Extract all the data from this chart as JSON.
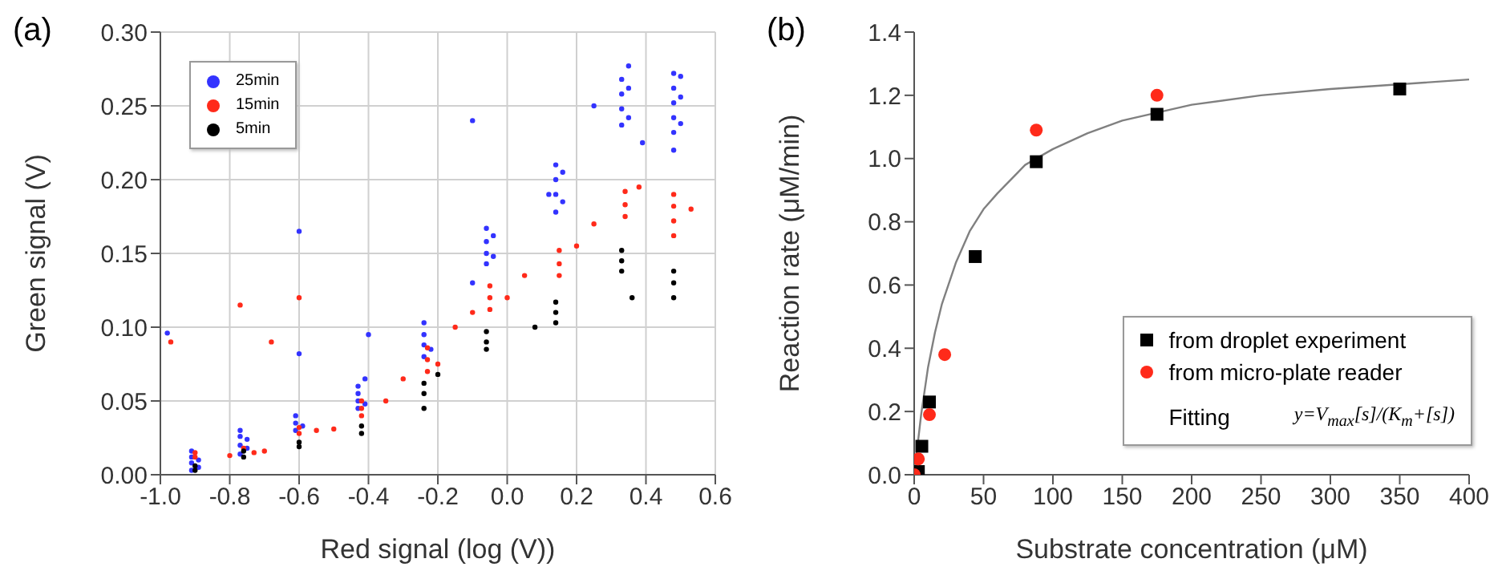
{
  "chart_data": [
    {
      "type": "scatter",
      "title": "(a)",
      "xlabel": "Red signal (log (V))",
      "ylabel": "Green signal (V)",
      "xlim": [
        -1.0,
        0.6
      ],
      "xticks": [
        {
          "value": -1.0,
          "label": "-1.0"
        },
        {
          "value": -0.8,
          "label": "-0.8"
        },
        {
          "value": -0.6,
          "label": "-0.6"
        },
        {
          "value": -0.4,
          "label": "-0.4"
        },
        {
          "value": -0.2,
          "label": "-0.2"
        },
        {
          "value": 0.0,
          "label": "0.0"
        },
        {
          "value": 0.2,
          "label": "0.2"
        },
        {
          "value": 0.4,
          "label": "0.4"
        },
        {
          "value": 0.6,
          "label": "0.6"
        }
      ],
      "ylim": [
        0,
        0.3
      ],
      "yticks": [
        {
          "value": 0,
          "label": "0.00"
        },
        {
          "value": 0.05,
          "label": "0.05"
        },
        {
          "value": 0.1,
          "label": "0.10"
        },
        {
          "value": 0.15,
          "label": "0.15"
        },
        {
          "value": 0.2,
          "label": "0.20"
        },
        {
          "value": 0.25,
          "label": "0.25"
        },
        {
          "value": 0.3,
          "label": "0.30"
        }
      ],
      "grid": true,
      "legend": "top left",
      "marker": "circle",
      "series": [
        {
          "name": "25min",
          "color": "#3333ff",
          "x": [
            -0.91,
            -0.91,
            -0.91,
            -0.91,
            -0.89,
            -0.89,
            -0.77,
            -0.77,
            -0.77,
            -0.77,
            -0.75,
            -0.75,
            -0.61,
            -0.61,
            -0.61,
            -0.59,
            -0.43,
            -0.43,
            -0.43,
            -0.43,
            -0.41,
            -0.41,
            -0.24,
            -0.24,
            -0.24,
            -0.24,
            -0.22,
            -0.06,
            -0.06,
            -0.06,
            -0.06,
            -0.04,
            -0.04,
            0.14,
            0.14,
            0.14,
            0.14,
            0.16,
            0.16,
            0.33,
            0.33,
            0.33,
            0.33,
            0.35,
            0.35,
            0.35,
            0.48,
            0.48,
            0.48,
            0.48,
            0.48,
            0.5,
            0.5,
            0.5,
            -0.6,
            -0.1,
            0.25,
            -0.98,
            0.39,
            0.48,
            -0.6,
            -0.4,
            0.12,
            -0.1
          ],
          "values": [
            0.003,
            0.008,
            0.012,
            0.016,
            0.005,
            0.01,
            0.014,
            0.02,
            0.026,
            0.03,
            0.018,
            0.024,
            0.03,
            0.035,
            0.04,
            0.033,
            0.045,
            0.05,
            0.055,
            0.06,
            0.048,
            0.065,
            0.08,
            0.088,
            0.095,
            0.103,
            0.085,
            0.143,
            0.15,
            0.158,
            0.167,
            0.148,
            0.162,
            0.178,
            0.19,
            0.2,
            0.21,
            0.185,
            0.205,
            0.237,
            0.248,
            0.258,
            0.268,
            0.242,
            0.262,
            0.277,
            0.232,
            0.242,
            0.252,
            0.262,
            0.272,
            0.238,
            0.256,
            0.27,
            0.165,
            0.24,
            0.25,
            0.096,
            0.225,
            0.22,
            0.082,
            0.095,
            0.19,
            0.13
          ]
        },
        {
          "name": "15min",
          "color": "#ff2a1a",
          "x": [
            -0.9,
            -0.9,
            -0.8,
            -0.73,
            -0.76,
            -0.7,
            -0.6,
            -0.6,
            -0.55,
            -0.5,
            -0.42,
            -0.42,
            -0.42,
            -0.35,
            -0.3,
            -0.23,
            -0.23,
            -0.23,
            -0.2,
            -0.15,
            -0.1,
            -0.05,
            -0.05,
            -0.05,
            0.0,
            0.05,
            0.15,
            0.15,
            0.15,
            0.2,
            0.25,
            0.34,
            0.34,
            0.34,
            0.38,
            0.48,
            0.48,
            0.48,
            0.48,
            0.53,
            -0.77,
            -0.6,
            -0.68,
            -0.97
          ],
          "values": [
            0.012,
            0.015,
            0.013,
            0.015,
            0.018,
            0.016,
            0.028,
            0.032,
            0.03,
            0.031,
            0.04,
            0.045,
            0.05,
            0.05,
            0.065,
            0.07,
            0.078,
            0.086,
            0.075,
            0.1,
            0.11,
            0.112,
            0.12,
            0.128,
            0.12,
            0.135,
            0.135,
            0.143,
            0.152,
            0.155,
            0.17,
            0.175,
            0.183,
            0.192,
            0.195,
            0.162,
            0.172,
            0.182,
            0.19,
            0.18,
            0.115,
            0.12,
            0.09,
            0.09
          ]
        },
        {
          "name": "5min",
          "color": "#000000",
          "x": [
            -0.9,
            -0.9,
            -0.76,
            -0.76,
            -0.6,
            -0.6,
            -0.42,
            -0.42,
            -0.24,
            -0.24,
            -0.24,
            -0.2,
            -0.06,
            -0.06,
            -0.06,
            0.14,
            0.14,
            0.14,
            0.33,
            0.33,
            0.33,
            0.48,
            0.48,
            0.48,
            0.08,
            0.36
          ],
          "values": [
            0.003,
            0.006,
            0.012,
            0.016,
            0.019,
            0.022,
            0.028,
            0.033,
            0.045,
            0.055,
            0.062,
            0.068,
            0.085,
            0.09,
            0.097,
            0.103,
            0.11,
            0.117,
            0.138,
            0.145,
            0.152,
            0.12,
            0.13,
            0.138,
            0.1,
            0.12
          ]
        }
      ]
    },
    {
      "type": "scatter",
      "title": "(b)",
      "xlabel": "Substrate concentration (μM)",
      "ylabel": "Reaction rate (μM/min)",
      "xlim": [
        0,
        400
      ],
      "xticks": [
        0,
        50,
        100,
        150,
        200,
        250,
        300,
        350,
        400
      ],
      "ylim": [
        0,
        1.4
      ],
      "yticks": [
        {
          "value": 0,
          "label": "0.0"
        },
        {
          "value": 0.2,
          "label": "0.2"
        },
        {
          "value": 0.4,
          "label": "0.4"
        },
        {
          "value": 0.6,
          "label": "0.6"
        },
        {
          "value": 0.8,
          "label": "0.8"
        },
        {
          "value": 1.0,
          "label": "1.0"
        },
        {
          "value": 1.2,
          "label": "1.2"
        },
        {
          "value": 1.4,
          "label": "1.4"
        }
      ],
      "legend": "bottom right",
      "annotations": [
        "Fitting",
        "y=V$_{max}$[s]/(K$_{m}$+[s])"
      ],
      "series": [
        {
          "type": "line",
          "color": "#808080",
          "marker": "none",
          "x": [
            0,
            5,
            10,
            15,
            20,
            30,
            40,
            50,
            60,
            80,
            100,
            125,
            150,
            200,
            250,
            300,
            400
          ],
          "values": [
            0,
            0.19,
            0.34,
            0.45,
            0.54,
            0.67,
            0.77,
            0.84,
            0.89,
            0.98,
            1.03,
            1.08,
            1.12,
            1.17,
            1.2,
            1.22,
            1.25
          ]
        },
        {
          "name": "from droplet experiment",
          "color": "#000000",
          "marker": "square",
          "x": [
            3,
            5.5,
            11,
            44,
            88,
            175,
            350
          ],
          "values": [
            0.01,
            0.09,
            0.23,
            0.69,
            0.99,
            1.14,
            1.22
          ]
        },
        {
          "name": "from micro-plate reader",
          "color": "#ff2a1a",
          "marker": "circle",
          "x": [
            0,
            3,
            11,
            22,
            88,
            175
          ],
          "values": [
            0,
            0.05,
            0.19,
            0.38,
            1.09,
            1.2
          ]
        }
      ]
    }
  ]
}
